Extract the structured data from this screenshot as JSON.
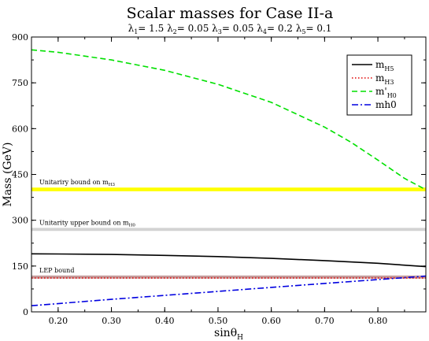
{
  "chart_data": {
    "type": "line",
    "title": "Scalar masses for Case II-a",
    "subtitle": {
      "parts": [
        {
          "sym": "λ",
          "sub": "1",
          "val": "= 1.5"
        },
        {
          "sym": "λ",
          "sub": "2",
          "val": "= 0.05"
        },
        {
          "sym": "λ",
          "sub": "3",
          "val": "= 0.05"
        },
        {
          "sym": "λ",
          "sub": "4",
          "val": "= 0.2"
        },
        {
          "sym": "λ",
          "sub": "5",
          "val": "= 0.1"
        }
      ]
    },
    "xlabel": {
      "main": "sinθ",
      "sub": "H"
    },
    "ylabel": "Mass (GeV)",
    "xlim": [
      0.15,
      0.89
    ],
    "ylim": [
      0,
      900
    ],
    "xticks": [
      0.2,
      0.3,
      0.4,
      0.5,
      0.6,
      0.7,
      0.8
    ],
    "xtick_labels": [
      "0.20",
      "0.30",
      "0.40",
      "0.50",
      "0.60",
      "0.70",
      "0.80"
    ],
    "yticks": [
      0,
      150,
      300,
      450,
      600,
      750,
      900
    ],
    "ytick_labels": [
      "0",
      "150",
      "300",
      "450",
      "600",
      "750",
      "900"
    ],
    "grid": false,
    "legend_position": "top-right",
    "bands": [
      {
        "label_main": "Unitariry bound on m",
        "label_sub": "H3",
        "y": 401,
        "color": "#ffff00",
        "width_units": 12
      },
      {
        "label_main": "Unitarity upper bound on m",
        "label_sub": "H0",
        "y": 270,
        "color": "#d3d3d3",
        "width_units": 10
      },
      {
        "label_main": "LEP bound",
        "label_sub": "",
        "y": 114,
        "color": "#c49a9a",
        "width_units": 10
      }
    ],
    "series": [
      {
        "name_main": "m",
        "name_sub": "H5",
        "color": "#000000",
        "dash": "",
        "x": [
          0.15,
          0.2,
          0.3,
          0.4,
          0.5,
          0.6,
          0.7,
          0.8,
          0.89
        ],
        "y": [
          190,
          189.5,
          188,
          185,
          181,
          175,
          168,
          159,
          148
        ]
      },
      {
        "name_main": "m",
        "name_sub": "H3",
        "color": "#e00000",
        "dash": "1.5,2.5",
        "x": [
          0.15,
          0.3,
          0.5,
          0.7,
          0.89
        ],
        "y": [
          111,
          111,
          111,
          111,
          111
        ]
      },
      {
        "name_main": "m'",
        "name_sub": "H0",
        "color": "#00e000",
        "dash": "7,4",
        "x": [
          0.15,
          0.2,
          0.3,
          0.4,
          0.5,
          0.6,
          0.7,
          0.75,
          0.8,
          0.85,
          0.89
        ],
        "y": [
          858,
          850,
          825,
          791,
          745,
          686,
          605,
          555,
          497,
          437,
          400
        ]
      },
      {
        "name_main": "mh0",
        "name_sub": "",
        "color": "#0000e0",
        "dash": "8,3,2,3",
        "x": [
          0.15,
          0.3,
          0.5,
          0.7,
          0.89
        ],
        "y": [
          20,
          41,
          67,
          93,
          117
        ]
      }
    ]
  }
}
